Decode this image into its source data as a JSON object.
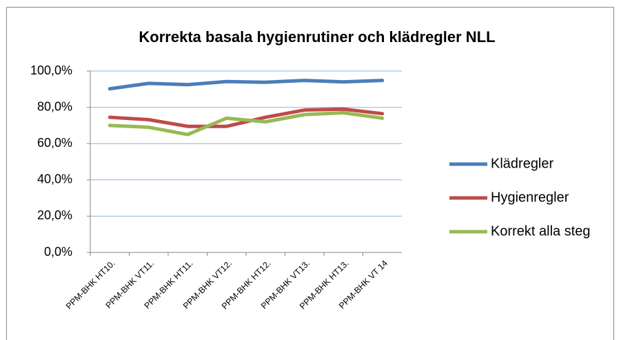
{
  "chart_data": {
    "type": "line",
    "title": "Korrekta basala hygienrutiner och klädregler NLL",
    "categories": [
      "PPM-BHK HT10.",
      "PPM-BHK VT11.",
      "PPM-BHK HT11.",
      "PPM-BHK VT12.",
      "PPM-BHK HT12.",
      "PPM-BHK VT13.",
      "PPM-BHK HT13.",
      "PPM-BHK VT 14"
    ],
    "series": [
      {
        "name": "Klädregler",
        "color": "#4a7ebb",
        "values": [
          90.2,
          93.2,
          92.5,
          94.2,
          93.8,
          94.8,
          94.0,
          94.8
        ]
      },
      {
        "name": "Hygienregler",
        "color": "#be4b48",
        "values": [
          74.5,
          73.2,
          69.5,
          69.5,
          74.5,
          78.5,
          79.0,
          76.5
        ]
      },
      {
        "name": "Korrekt alla steg",
        "color": "#98b954",
        "values": [
          70.0,
          69.0,
          65.0,
          74.0,
          72.0,
          76.0,
          77.0,
          74.0
        ]
      }
    ],
    "ylim": [
      0,
      100
    ],
    "yticks": [
      {
        "value": 0,
        "label": "0,0%"
      },
      {
        "value": 20,
        "label": "20,0%"
      },
      {
        "value": 40,
        "label": "40,0%"
      },
      {
        "value": 60,
        "label": "60,0%"
      },
      {
        "value": 80,
        "label": "80,0%"
      },
      {
        "value": 100,
        "label": "100,0%"
      }
    ],
    "grid": true,
    "legend": "right"
  }
}
